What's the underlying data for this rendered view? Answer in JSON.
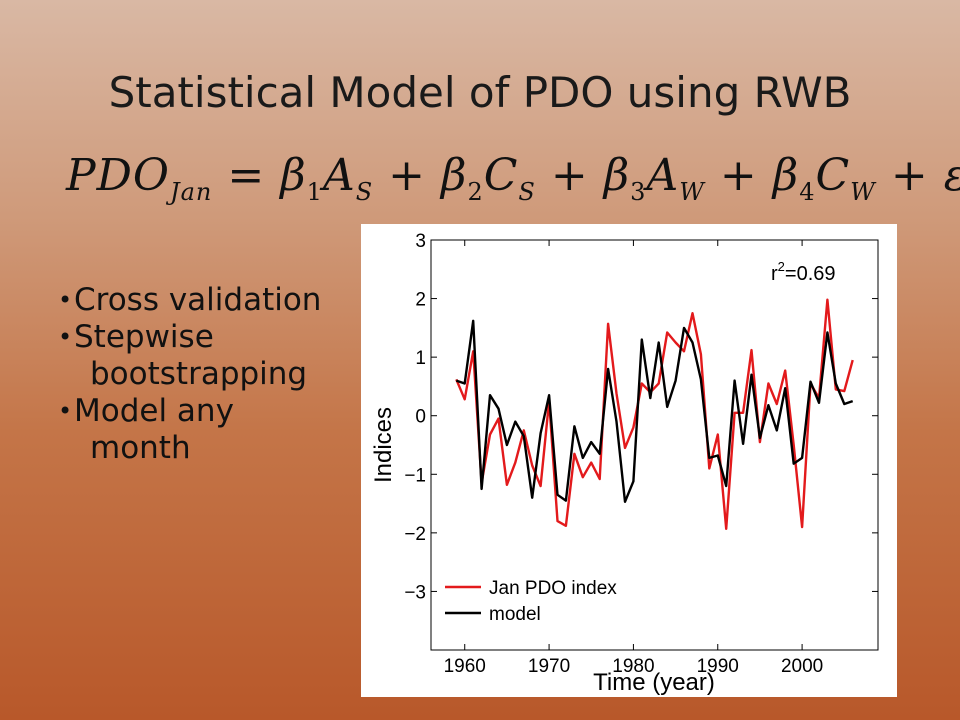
{
  "slide": {
    "title": "Statistical Model of PDO using RWB",
    "equation": {
      "lhs": "PDO",
      "lhs_sub": "Jan",
      "terms": [
        {
          "coef": "β",
          "coef_sub": "1",
          "var": "A",
          "var_sub": "S"
        },
        {
          "coef": "β",
          "coef_sub": "2",
          "var": "C",
          "var_sub": "S"
        },
        {
          "coef": "β",
          "coef_sub": "3",
          "var": "A",
          "var_sub": "W"
        },
        {
          "coef": "β",
          "coef_sub": "4",
          "var": "C",
          "var_sub": "W"
        }
      ],
      "error": "ε"
    },
    "bullets": [
      {
        "line1": "Cross validation",
        "line2": ""
      },
      {
        "line1": "Stepwise",
        "line2": "bootstrapping"
      },
      {
        "line1": "Model any",
        "line2": "month"
      }
    ]
  },
  "colors": {
    "pdo": "#e31a1c",
    "model": "#000000"
  },
  "chart_data": {
    "type": "line",
    "xlabel": "Time (year)",
    "ylabel": "Indices",
    "annotation": "r²=0.69",
    "xlim": [
      1956,
      2009
    ],
    "ylim": [
      -4,
      3
    ],
    "xticks": [
      1960,
      1970,
      1980,
      1990,
      2000
    ],
    "yticks": [
      3,
      2,
      1,
      0,
      -1,
      -2,
      -3
    ],
    "ytick_labels": [
      "3",
      "2",
      "1",
      "0",
      "−1",
      "−2",
      "−3"
    ],
    "legend": "bottom-left",
    "x": [
      1959,
      1960,
      1961,
      1962,
      1963,
      1964,
      1965,
      1966,
      1967,
      1968,
      1969,
      1970,
      1971,
      1972,
      1973,
      1974,
      1975,
      1976,
      1977,
      1978,
      1979,
      1980,
      1981,
      1982,
      1983,
      1984,
      1985,
      1986,
      1987,
      1988,
      1989,
      1990,
      1991,
      1992,
      1993,
      1994,
      1995,
      1996,
      1997,
      1998,
      1999,
      2000,
      2001,
      2002,
      2003,
      2004,
      2005,
      2006
    ],
    "series": [
      {
        "name": "Jan PDO index",
        "color": "#e31a1c",
        "values": [
          0.62,
          0.28,
          1.1,
          -1.15,
          -0.32,
          -0.05,
          -1.18,
          -0.8,
          -0.25,
          -0.85,
          -1.2,
          0.25,
          -1.8,
          -1.88,
          -0.65,
          -1.05,
          -0.8,
          -1.08,
          1.57,
          0.38,
          -0.55,
          -0.2,
          0.55,
          0.4,
          0.55,
          1.42,
          1.25,
          1.1,
          1.75,
          1.05,
          -0.9,
          -0.32,
          -1.93,
          0.05,
          0.05,
          1.12,
          -0.45,
          0.55,
          0.2,
          0.77,
          -0.5,
          -1.9,
          0.55,
          0.3,
          1.98,
          0.45,
          0.42,
          0.95
        ]
      },
      {
        "name": "model",
        "color": "#000000",
        "values": [
          0.6,
          0.55,
          1.62,
          -1.25,
          0.35,
          0.12,
          -0.5,
          -0.1,
          -0.35,
          -1.4,
          -0.3,
          0.35,
          -1.35,
          -1.45,
          -0.18,
          -0.72,
          -0.45,
          -0.65,
          0.8,
          -0.1,
          -1.47,
          -1.12,
          1.3,
          0.3,
          1.25,
          0.15,
          0.6,
          1.5,
          1.25,
          0.62,
          -0.72,
          -0.68,
          -1.2,
          0.6,
          -0.48,
          0.7,
          -0.38,
          0.18,
          -0.25,
          0.47,
          -0.82,
          -0.72,
          0.58,
          0.22,
          1.42,
          0.55,
          0.2,
          0.25
        ]
      }
    ]
  }
}
